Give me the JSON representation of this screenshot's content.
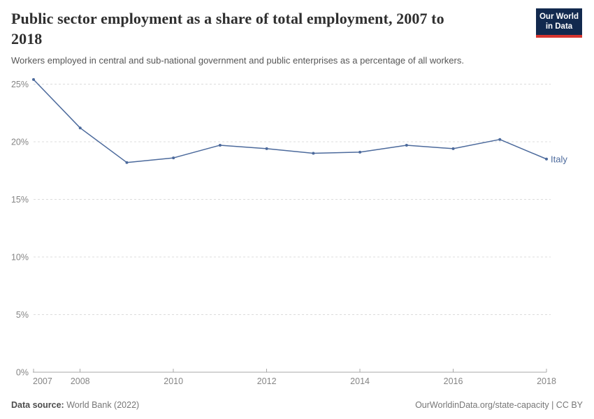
{
  "header": {
    "title_line1": "Public sector employment as a share of total employment, 2007 to",
    "title_line2": "2018",
    "subtitle": "Workers employed in central and sub-national government and public enterprises as a percentage of all workers."
  },
  "logo": {
    "line1": "Our World",
    "line2": "in Data"
  },
  "chart_data": {
    "type": "line",
    "title": "Public sector employment as a share of total employment, 2007 to 2018",
    "x": [
      2007,
      2008,
      2009,
      2010,
      2011,
      2012,
      2013,
      2014,
      2015,
      2016,
      2017,
      2018
    ],
    "series": [
      {
        "name": "Italy",
        "color": "#4C6A9C",
        "values": [
          25.4,
          21.2,
          18.2,
          18.6,
          19.7,
          19.4,
          19.0,
          19.1,
          19.7,
          19.4,
          20.2,
          18.5
        ]
      }
    ],
    "ylim": [
      0,
      25
    ],
    "yticks": [
      0,
      5,
      10,
      15,
      20,
      25
    ],
    "ytick_suffix": "%",
    "xticks": [
      2007,
      2008,
      2010,
      2012,
      2014,
      2016,
      2018
    ],
    "xlabel": "",
    "ylabel": "",
    "grid": "horizontal-dashed",
    "legend": "line-end-label"
  },
  "footer": {
    "source_label": "Data source:",
    "source_value": " World Bank (2022)",
    "credit": "OurWorldinData.org/state-capacity | CC BY"
  },
  "colors": {
    "accent": "#4C6A9C",
    "logo_bg": "#12294e",
    "logo_red": "#d7352f",
    "grid": "#dcdcdc",
    "axis": "#a8a8a8",
    "tick_label": "#858585"
  }
}
